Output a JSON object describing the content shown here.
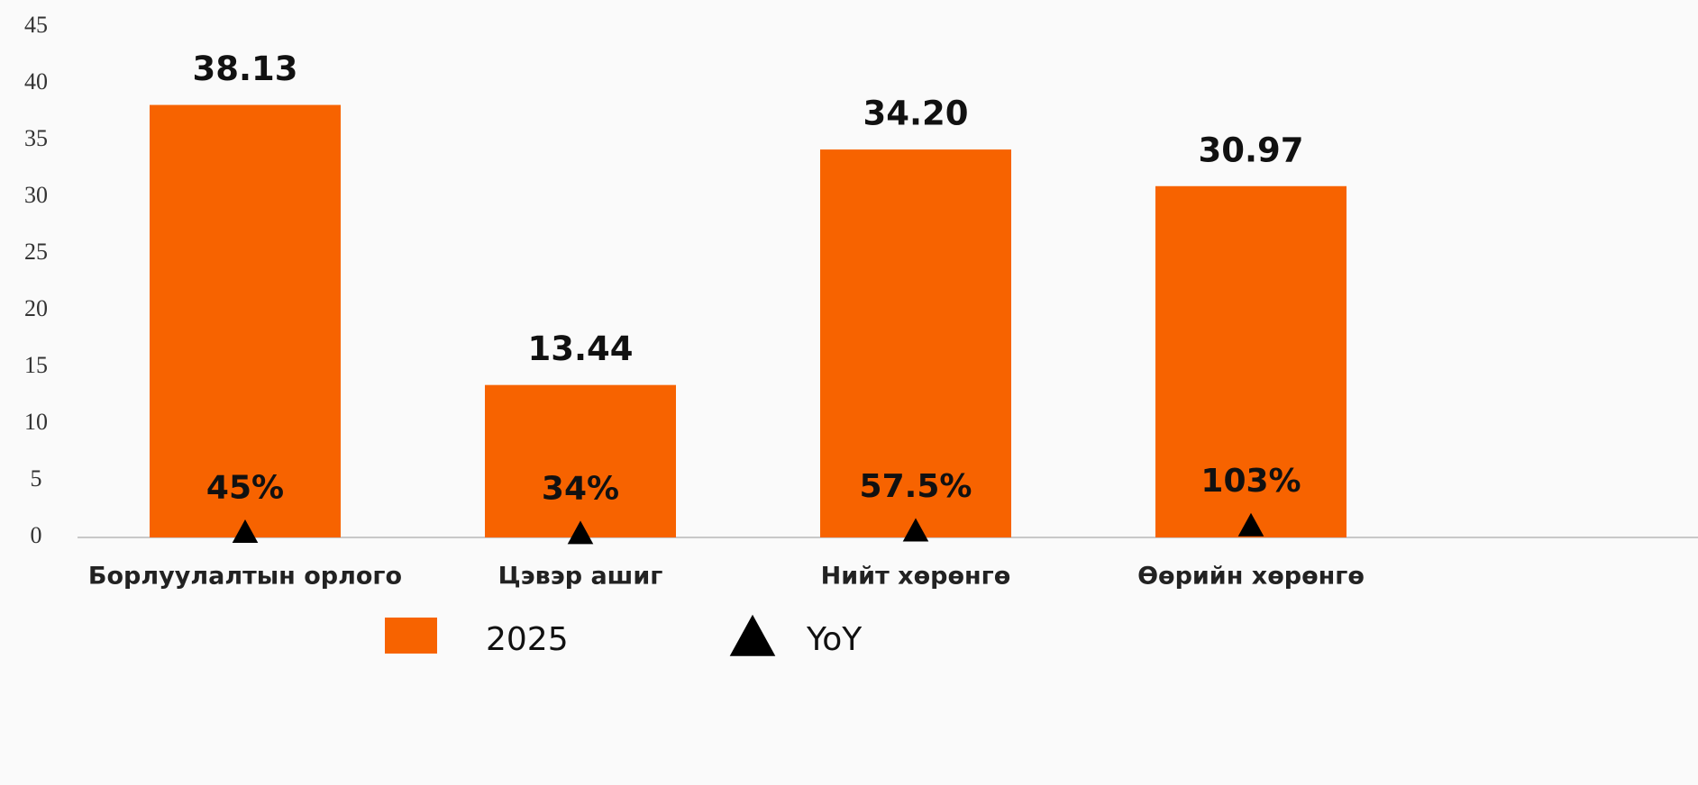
{
  "chart_data": {
    "type": "bar",
    "categories": [
      "Борлуулалтын орлого",
      "Цэвэр ашиг",
      "Нийт хөрөнгө",
      "Өөрийн хөрөнгө"
    ],
    "series": [
      {
        "name": "2025",
        "kind": "bar",
        "color": "#f76300",
        "values": [
          38.13,
          13.44,
          34.2,
          30.97
        ],
        "value_labels": [
          "38.13",
          "13.44",
          "34.20",
          "30.97"
        ]
      },
      {
        "name": "YoY",
        "kind": "triangle",
        "color": "#000000",
        "values": [
          0.45,
          0.34,
          0.575,
          1.03
        ],
        "value_labels": [
          "45%",
          "34%",
          "57.5%",
          "103%"
        ]
      }
    ],
    "ylim": [
      0,
      45
    ],
    "yticks": [
      0,
      5,
      10,
      15,
      20,
      25,
      30,
      35,
      40,
      45
    ],
    "grid": false,
    "legend": "bottom"
  }
}
